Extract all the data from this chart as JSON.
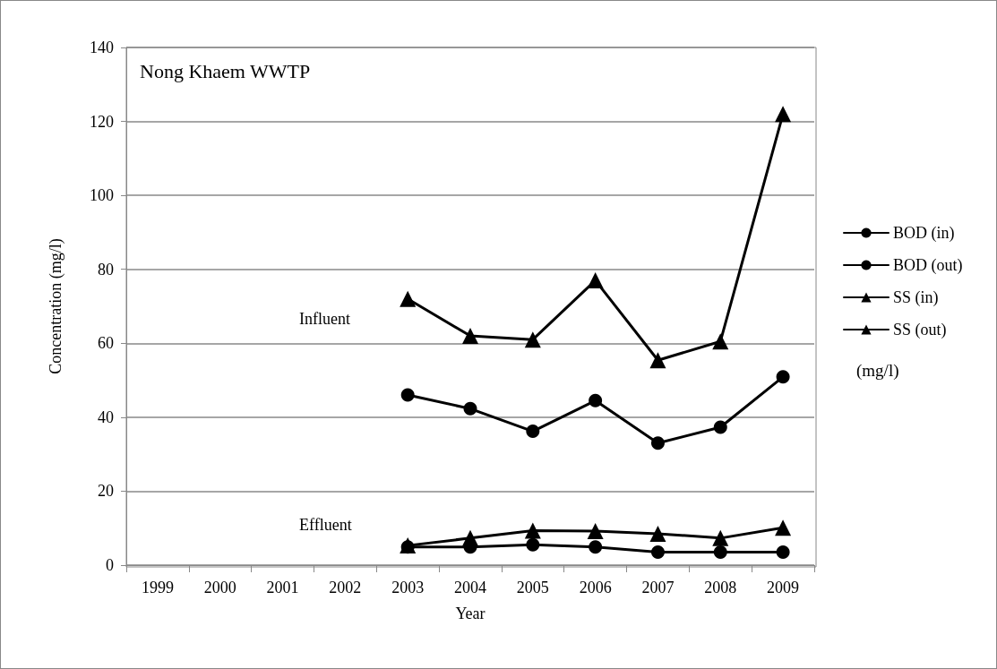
{
  "chart_data": {
    "type": "line",
    "xlabel": "Year",
    "ylabel": "Concentration (mg/l)",
    "categories": [
      "1999",
      "2000",
      "2001",
      "2002",
      "2003",
      "2004",
      "2005",
      "2006",
      "2007",
      "2008",
      "2009"
    ],
    "series": [
      {
        "name": "BOD (in)",
        "color": "#000000",
        "marker": "circle",
        "values": [
          null,
          null,
          null,
          null,
          46,
          42.3,
          36.2,
          44.5,
          33,
          37.3,
          50.9
        ]
      },
      {
        "name": "BOD (out)",
        "color": "#000000",
        "marker": "circle",
        "values": [
          null,
          null,
          null,
          null,
          4.9,
          4.9,
          5.5,
          4.9,
          3.5,
          3.5,
          3.5
        ]
      },
      {
        "name": "SS (in)",
        "color": "#000000",
        "marker": "triangle",
        "values": [
          null,
          null,
          null,
          null,
          72,
          62,
          61,
          77,
          55.4,
          60.5,
          122
        ]
      },
      {
        "name": "SS (out)",
        "color": "#000000",
        "marker": "triangle",
        "values": [
          null,
          null,
          null,
          null,
          5.3,
          7.3,
          9.3,
          9.2,
          8.5,
          7.3,
          10.1
        ]
      }
    ],
    "ylim": [
      0,
      140
    ],
    "yticks": [
      0,
      20,
      40,
      60,
      80,
      100,
      120,
      140
    ],
    "grid": "y",
    "legend": "right",
    "line_style": "solid",
    "annotations": [
      "Nong Khaem WWTP",
      "(mg/l)",
      "Influent",
      "Effluent"
    ]
  }
}
